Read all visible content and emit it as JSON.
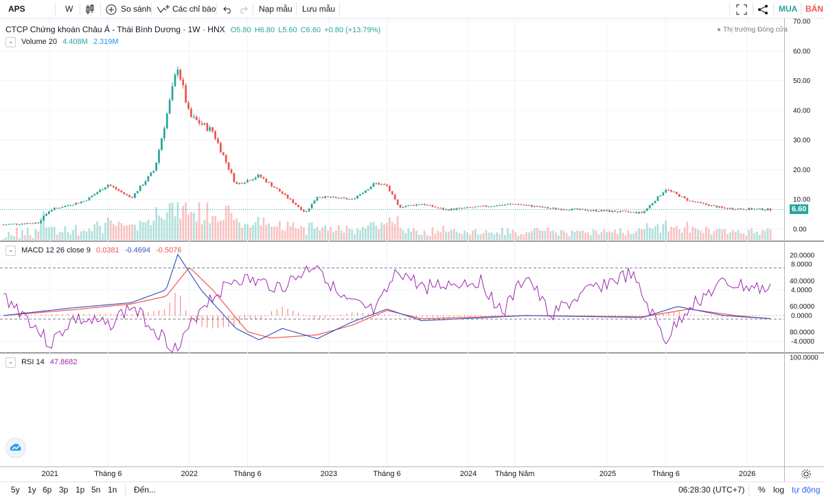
{
  "toolbar": {
    "symbol": "APS",
    "interval": "W",
    "compare_label": "So sánh",
    "indicators_label": "Các chỉ báo",
    "undo_icon": "undo-icon",
    "redo_icon": "redo-icon",
    "load_template": "Nạp mẫu",
    "save_template": "Lưu mẫu",
    "buy_label": "MUA",
    "sell_label": "BÁN",
    "buy_color": "#26a69a",
    "sell_color": "#ef5350"
  },
  "main_legend": {
    "title": "CTCP Chứng khoán Châu Á - Thái Bình Dương · 1W · HNX",
    "open": "O5.80",
    "high": "H6.80",
    "low": "L5.60",
    "close": "C6.60",
    "change": "+0.80 (+13.79%)",
    "market_status": "Thị trường Đóng cửa"
  },
  "volume_legend": {
    "name": "Volume 20",
    "value1": "4.408M",
    "value2": "2.319M"
  },
  "macd_legend": {
    "name": "MACD 12 26 close 9",
    "hist": "0.0381",
    "macd": "-0.4694",
    "signal": "-0.5076"
  },
  "rsi_legend": {
    "name": "RSI 14",
    "value": "47.8682"
  },
  "price_axis": [
    "70.00",
    "60.00",
    "50.00",
    "40.00",
    "30.00",
    "20.00",
    "10.00",
    "0.00"
  ],
  "last_price": "6.60",
  "macd_axis": [
    "8.0000",
    "4.0000",
    "0.0000",
    "-4.0000"
  ],
  "rsi_axis": [
    "100.0000",
    "80.0000",
    "60.0000",
    "40.0000",
    "20.0000"
  ],
  "time_axis": [
    "2021",
    "Tháng 6",
    "2022",
    "Tháng 6",
    "2023",
    "Tháng 6",
    "2024",
    "Tháng Năm",
    "2025",
    "Tháng 6",
    "2026"
  ],
  "bottom_bar": {
    "ranges": [
      "5y",
      "1y",
      "6p",
      "3p",
      "1p",
      "5n",
      "1n"
    ],
    "goto": "Đến...",
    "clock": "06:28:30 (UTC+7)",
    "percent": "%",
    "log": "log",
    "auto": "tự động"
  },
  "chart_data": [
    {
      "type": "candlestick",
      "title": "CTCP Chứng khoán Châu Á - Thái Bình Dương · 1W · HNX",
      "ylim": [
        0,
        70
      ],
      "x_ticks": [
        "2021",
        "Tháng 6",
        "2022",
        "Tháng 6",
        "2023",
        "Tháng 6",
        "2024",
        "Tháng Năm",
        "2025",
        "Tháng 6",
        "2026"
      ],
      "close_path": [
        {
          "x": "2020-09",
          "y": 1.5
        },
        {
          "x": "2020-12",
          "y": 2.2
        },
        {
          "x": "2021-01",
          "y": 6.5
        },
        {
          "x": "2021-04",
          "y": 9.5
        },
        {
          "x": "2021-06",
          "y": 15.0
        },
        {
          "x": "2021-08",
          "y": 10.5
        },
        {
          "x": "2021-10",
          "y": 20.0
        },
        {
          "x": "2021-12",
          "y": 55.0
        },
        {
          "x": "2022-01",
          "y": 38.0
        },
        {
          "x": "2022-03",
          "y": 33.0
        },
        {
          "x": "2022-05",
          "y": 15.0
        },
        {
          "x": "2022-07",
          "y": 18.0
        },
        {
          "x": "2022-09",
          "y": 12.0
        },
        {
          "x": "2022-11",
          "y": 5.5
        },
        {
          "x": "2022-12",
          "y": 11.0
        },
        {
          "x": "2023-03",
          "y": 10.0
        },
        {
          "x": "2023-05",
          "y": 15.5
        },
        {
          "x": "2023-06",
          "y": 14.5
        },
        {
          "x": "2023-07",
          "y": 7.5
        },
        {
          "x": "2023-09",
          "y": 8.5
        },
        {
          "x": "2023-11",
          "y": 6.5
        },
        {
          "x": "2024-05",
          "y": 8.5
        },
        {
          "x": "2024-08",
          "y": 7.0
        },
        {
          "x": "2025-04",
          "y": 5.5
        },
        {
          "x": "2025-06",
          "y": 13.5
        },
        {
          "x": "2025-08",
          "y": 9.5
        },
        {
          "x": "2025-11",
          "y": 7.0
        },
        {
          "x": "2026-03",
          "y": 6.6
        }
      ],
      "last": 6.6
    },
    {
      "type": "line",
      "title": "MACD 12 26 close 9",
      "ylim": [
        -5,
        10
      ],
      "series": [
        {
          "name": "MACD",
          "color": "#3a56c5",
          "points": [
            {
              "x": "2020-09",
              "y": 0.0
            },
            {
              "x": "2021-03",
              "y": 1.2
            },
            {
              "x": "2021-08",
              "y": 2.0
            },
            {
              "x": "2021-11",
              "y": 4.0
            },
            {
              "x": "2021-12",
              "y": 9.5
            },
            {
              "x": "2022-02",
              "y": 4.0
            },
            {
              "x": "2022-05",
              "y": -2.0
            },
            {
              "x": "2022-07",
              "y": -3.8
            },
            {
              "x": "2022-09",
              "y": -2.0
            },
            {
              "x": "2022-12",
              "y": -3.6
            },
            {
              "x": "2023-03",
              "y": -1.0
            },
            {
              "x": "2023-06",
              "y": 1.0
            },
            {
              "x": "2023-09",
              "y": -0.8
            },
            {
              "x": "2024-06",
              "y": 0.0
            },
            {
              "x": "2025-04",
              "y": -0.3
            },
            {
              "x": "2025-07",
              "y": 1.4
            },
            {
              "x": "2025-11",
              "y": 0.0
            },
            {
              "x": "2026-03",
              "y": -0.47
            }
          ]
        },
        {
          "name": "Signal",
          "color": "#ef5350",
          "points": [
            {
              "x": "2020-09",
              "y": 0.0
            },
            {
              "x": "2021-03",
              "y": 0.9
            },
            {
              "x": "2021-08",
              "y": 1.8
            },
            {
              "x": "2021-11",
              "y": 3.0
            },
            {
              "x": "2022-01",
              "y": 7.5
            },
            {
              "x": "2022-03",
              "y": 4.0
            },
            {
              "x": "2022-06",
              "y": -2.5
            },
            {
              "x": "2022-08",
              "y": -3.5
            },
            {
              "x": "2022-12",
              "y": -3.0
            },
            {
              "x": "2023-03",
              "y": -1.5
            },
            {
              "x": "2023-06",
              "y": 0.8
            },
            {
              "x": "2023-09",
              "y": -0.5
            },
            {
              "x": "2024-06",
              "y": 0.0
            },
            {
              "x": "2025-04",
              "y": -0.2
            },
            {
              "x": "2025-08",
              "y": 1.0
            },
            {
              "x": "2025-12",
              "y": 0.0
            },
            {
              "x": "2026-03",
              "y": -0.51
            }
          ]
        }
      ]
    },
    {
      "type": "line",
      "title": "RSI 14",
      "ylim": [
        20,
        100
      ],
      "bands": [
        30,
        70
      ],
      "series": [
        {
          "name": "RSI",
          "color": "#9c27b0",
          "points": [
            {
              "x": "2020-09",
              "y": 52
            },
            {
              "x": "2020-11",
              "y": 68
            },
            {
              "x": "2021-01",
              "y": 90
            },
            {
              "x": "2021-03",
              "y": 70
            },
            {
              "x": "2021-06",
              "y": 75
            },
            {
              "x": "2021-08",
              "y": 60
            },
            {
              "x": "2021-12",
              "y": 95
            },
            {
              "x": "2022-02",
              "y": 60
            },
            {
              "x": "2022-05",
              "y": 38
            },
            {
              "x": "2022-09",
              "y": 45
            },
            {
              "x": "2022-12",
              "y": 26
            },
            {
              "x": "2023-02",
              "y": 55
            },
            {
              "x": "2023-05",
              "y": 65
            },
            {
              "x": "2023-07",
              "y": 32
            },
            {
              "x": "2023-09",
              "y": 45
            },
            {
              "x": "2024-02",
              "y": 40
            },
            {
              "x": "2024-04",
              "y": 65
            },
            {
              "x": "2024-06",
              "y": 35
            },
            {
              "x": "2024-08",
              "y": 67
            },
            {
              "x": "2024-12",
              "y": 45
            },
            {
              "x": "2025-03",
              "y": 35
            },
            {
              "x": "2025-06",
              "y": 87
            },
            {
              "x": "2025-08",
              "y": 60
            },
            {
              "x": "2025-11",
              "y": 42
            },
            {
              "x": "2026-03",
              "y": 47.87
            }
          ]
        }
      ]
    }
  ]
}
